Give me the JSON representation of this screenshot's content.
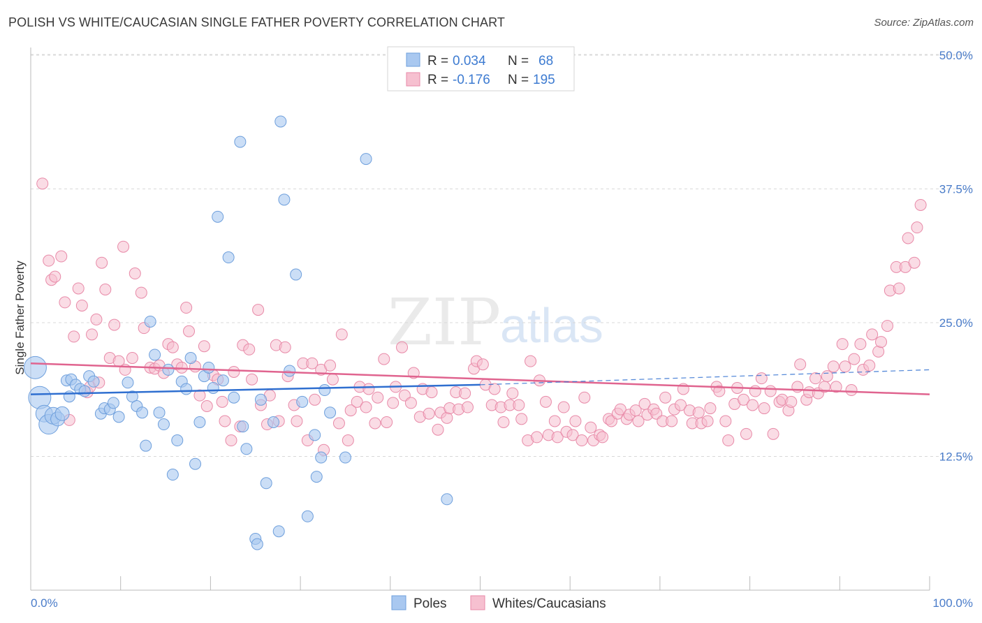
{
  "title": "POLISH VS WHITE/CAUCASIAN SINGLE FATHER POVERTY CORRELATION CHART",
  "source": "Source: ZipAtlas.com",
  "watermark": {
    "zip": "ZIP",
    "atlas": "atlas"
  },
  "colors": {
    "poles_fill": "#a9c8f0",
    "poles_stroke": "#6e9fdc",
    "poles_line": "#2f6fd0",
    "whites_fill": "#f6c0d0",
    "whites_stroke": "#e88aa8",
    "whites_line": "#e0648f",
    "tick_label": "#4a7cc9",
    "grid": "#d8d8d8"
  },
  "legend": {
    "rows": [
      {
        "r_label": "R =",
        "r_value": "0.034",
        "n_label": "N =",
        "n_value": "68"
      },
      {
        "r_label": "R =",
        "r_value": "-0.176",
        "n_label": "N =",
        "n_value": "195"
      }
    ]
  },
  "bottom_legend": [
    "Poles",
    "Whites/Caucasians"
  ],
  "chart_data": {
    "type": "scatter",
    "xlabel": "",
    "ylabel": "Single Father Poverty",
    "xlim": [
      0,
      100
    ],
    "ylim": [
      0,
      51.5
    ],
    "x_tick_labels": [
      "0.0%",
      "100.0%"
    ],
    "y_ticks": [
      12.5,
      25.0,
      37.5,
      50.0
    ],
    "y_tick_labels": [
      "12.5%",
      "25.0%",
      "37.5%",
      "50.0%"
    ],
    "grid": "horizontal dashed",
    "legend_position": "top-center",
    "series": [
      {
        "name": "Poles",
        "r": 0.034,
        "n": 68,
        "trend": {
          "x0": 0,
          "y0": 18.3,
          "x1": 50,
          "y1": 19.2,
          "dashed_to_x": 100,
          "dashed_to_y": 20.6
        },
        "points": [
          [
            0.5,
            20.8,
            16
          ],
          [
            1.0,
            18.0,
            16
          ],
          [
            1.5,
            16.5,
            12
          ],
          [
            2.0,
            15.5,
            14
          ],
          [
            2.5,
            16.3,
            12
          ],
          [
            3.0,
            16.0,
            10
          ],
          [
            3.5,
            16.5,
            10
          ],
          [
            4.0,
            19.6,
            8
          ],
          [
            4.3,
            18.1,
            8
          ],
          [
            4.5,
            19.7,
            8
          ],
          [
            5.0,
            19.2,
            8
          ],
          [
            5.5,
            18.8,
            8
          ],
          [
            6.0,
            18.6,
            8
          ],
          [
            6.5,
            20.0,
            8
          ],
          [
            7.0,
            19.5,
            8
          ],
          [
            7.8,
            16.5,
            8
          ],
          [
            8.2,
            17.0,
            8
          ],
          [
            8.8,
            16.9,
            8
          ],
          [
            9.2,
            17.5,
            8
          ],
          [
            9.8,
            16.2,
            8
          ],
          [
            10.8,
            19.4,
            8
          ],
          [
            11.3,
            18.1,
            8
          ],
          [
            11.8,
            17.2,
            8
          ],
          [
            12.4,
            16.6,
            8
          ],
          [
            12.8,
            13.5,
            8
          ],
          [
            13.3,
            25.1,
            8
          ],
          [
            13.8,
            22.0,
            8
          ],
          [
            14.3,
            16.6,
            8
          ],
          [
            14.8,
            15.5,
            8
          ],
          [
            15.3,
            20.6,
            8
          ],
          [
            15.8,
            10.8,
            8
          ],
          [
            16.3,
            14.0,
            8
          ],
          [
            16.8,
            19.5,
            8
          ],
          [
            17.3,
            18.8,
            8
          ],
          [
            17.8,
            21.7,
            8
          ],
          [
            18.3,
            11.8,
            8
          ],
          [
            18.8,
            15.7,
            8
          ],
          [
            19.3,
            20.0,
            8
          ],
          [
            19.8,
            20.8,
            8
          ],
          [
            20.3,
            18.9,
            8
          ],
          [
            20.8,
            34.9,
            8
          ],
          [
            21.4,
            19.6,
            8
          ],
          [
            22.0,
            31.1,
            8
          ],
          [
            22.6,
            18.0,
            8
          ],
          [
            23.3,
            41.9,
            8
          ],
          [
            23.6,
            15.3,
            8
          ],
          [
            24.0,
            13.2,
            8
          ],
          [
            25.0,
            4.8,
            8
          ],
          [
            25.2,
            4.3,
            8
          ],
          [
            25.6,
            17.8,
            8
          ],
          [
            26.2,
            10.0,
            8
          ],
          [
            27.0,
            15.7,
            8
          ],
          [
            27.6,
            5.5,
            8
          ],
          [
            27.8,
            43.8,
            8
          ],
          [
            28.2,
            36.5,
            8
          ],
          [
            28.8,
            20.5,
            8
          ],
          [
            29.5,
            29.5,
            8
          ],
          [
            30.2,
            17.6,
            8
          ],
          [
            30.8,
            6.9,
            8
          ],
          [
            31.6,
            14.5,
            8
          ],
          [
            31.8,
            10.6,
            8
          ],
          [
            32.3,
            12.4,
            8
          ],
          [
            32.7,
            18.7,
            8
          ],
          [
            33.3,
            16.6,
            8
          ],
          [
            35.0,
            12.4,
            8
          ],
          [
            37.3,
            40.3,
            8
          ],
          [
            46.3,
            8.5,
            8
          ]
        ]
      },
      {
        "name": "Whites/Caucasians",
        "r": -0.176,
        "n": 195,
        "trend": {
          "x0": 0,
          "y0": 21.2,
          "x1": 100,
          "y1": 18.3
        },
        "points": [
          [
            1.3,
            38.0
          ],
          [
            2.0,
            30.8
          ],
          [
            2.3,
            29.0
          ],
          [
            2.7,
            29.3
          ],
          [
            3.4,
            31.2
          ],
          [
            3.8,
            26.9
          ],
          [
            4.3,
            15.9
          ],
          [
            4.8,
            23.7
          ],
          [
            5.3,
            28.2
          ],
          [
            5.7,
            26.6
          ],
          [
            6.3,
            18.5
          ],
          [
            6.6,
            19.0
          ],
          [
            6.8,
            23.9
          ],
          [
            7.3,
            25.3
          ],
          [
            7.6,
            19.4
          ],
          [
            7.9,
            30.6
          ],
          [
            8.3,
            28.1
          ],
          [
            8.8,
            21.7
          ],
          [
            9.3,
            24.8
          ],
          [
            9.8,
            21.4
          ],
          [
            10.3,
            32.1
          ],
          [
            10.5,
            20.6
          ],
          [
            11.3,
            21.7
          ],
          [
            11.6,
            29.6
          ],
          [
            12.3,
            27.8
          ],
          [
            12.6,
            24.5
          ],
          [
            13.3,
            20.8
          ],
          [
            13.8,
            20.7
          ],
          [
            14.3,
            21.0
          ],
          [
            14.8,
            20.3
          ],
          [
            15.3,
            23.0
          ],
          [
            15.8,
            22.7
          ],
          [
            16.3,
            21.1
          ],
          [
            16.8,
            20.8
          ],
          [
            17.3,
            26.4
          ],
          [
            17.6,
            24.2
          ],
          [
            18.3,
            20.9
          ],
          [
            18.8,
            18.2
          ],
          [
            19.3,
            22.8
          ],
          [
            19.6,
            17.2
          ],
          [
            20.3,
            20.1
          ],
          [
            20.8,
            19.7
          ],
          [
            21.3,
            17.6
          ],
          [
            21.6,
            15.8
          ],
          [
            22.3,
            14.0
          ],
          [
            22.6,
            20.4
          ],
          [
            23.3,
            15.3
          ],
          [
            23.6,
            22.9
          ],
          [
            24.3,
            22.5
          ],
          [
            24.6,
            19.7
          ],
          [
            25.3,
            26.2
          ],
          [
            25.6,
            17.3
          ],
          [
            26.3,
            15.5
          ],
          [
            26.6,
            18.2
          ],
          [
            27.3,
            22.9
          ],
          [
            27.6,
            15.8
          ],
          [
            28.3,
            22.7
          ],
          [
            28.6,
            20.0
          ],
          [
            29.3,
            17.3
          ],
          [
            29.6,
            15.8
          ],
          [
            30.3,
            21.2
          ],
          [
            30.8,
            14.0
          ],
          [
            31.3,
            21.2
          ],
          [
            31.6,
            17.8
          ],
          [
            32.3,
            20.6
          ],
          [
            32.6,
            13.1
          ],
          [
            33.3,
            21.0
          ],
          [
            33.6,
            19.7
          ],
          [
            34.3,
            15.6
          ],
          [
            34.6,
            23.9
          ],
          [
            35.3,
            14.0
          ],
          [
            35.6,
            16.8
          ],
          [
            36.3,
            17.6
          ],
          [
            36.6,
            19.0
          ],
          [
            37.3,
            17.1
          ],
          [
            37.6,
            18.8
          ],
          [
            38.3,
            15.6
          ],
          [
            38.6,
            18.0
          ],
          [
            39.3,
            21.6
          ],
          [
            39.6,
            15.7
          ],
          [
            40.3,
            17.5
          ],
          [
            40.6,
            19.0
          ],
          [
            41.3,
            22.7
          ],
          [
            41.6,
            18.2
          ],
          [
            42.3,
            17.5
          ],
          [
            42.6,
            20.3
          ],
          [
            43.3,
            16.2
          ],
          [
            43.6,
            18.8
          ],
          [
            44.3,
            16.5
          ],
          [
            44.6,
            18.5
          ],
          [
            45.3,
            15.0
          ],
          [
            45.6,
            16.6
          ],
          [
            46.3,
            16.1
          ],
          [
            46.6,
            17.0
          ],
          [
            47.3,
            18.5
          ],
          [
            47.6,
            16.9
          ],
          [
            48.3,
            18.4
          ],
          [
            48.6,
            17.1
          ],
          [
            49.3,
            20.7
          ],
          [
            49.6,
            21.4
          ],
          [
            50.3,
            21.1
          ],
          [
            50.6,
            19.2
          ],
          [
            51.3,
            17.3
          ],
          [
            51.6,
            18.8
          ],
          [
            52.3,
            17.1
          ],
          [
            52.6,
            15.7
          ],
          [
            53.3,
            17.3
          ],
          [
            53.6,
            18.4
          ],
          [
            54.3,
            17.3
          ],
          [
            54.6,
            16.0
          ],
          [
            55.3,
            14.0
          ],
          [
            55.6,
            21.4
          ],
          [
            56.3,
            14.3
          ],
          [
            56.6,
            19.6
          ],
          [
            57.3,
            17.6
          ],
          [
            57.6,
            14.5
          ],
          [
            58.3,
            15.8
          ],
          [
            58.6,
            14.3
          ],
          [
            59.3,
            17.1
          ],
          [
            59.6,
            14.8
          ],
          [
            60.3,
            14.5
          ],
          [
            60.6,
            15.8
          ],
          [
            61.3,
            14.0
          ],
          [
            61.6,
            18.0
          ],
          [
            62.3,
            15.2
          ],
          [
            62.6,
            14.0
          ],
          [
            63.3,
            14.5
          ],
          [
            63.6,
            14.3
          ],
          [
            64.3,
            16.0
          ],
          [
            64.6,
            15.8
          ],
          [
            65.3,
            16.5
          ],
          [
            65.6,
            16.9
          ],
          [
            66.3,
            16.0
          ],
          [
            66.6,
            16.4
          ],
          [
            67.3,
            16.8
          ],
          [
            67.6,
            15.8
          ],
          [
            68.3,
            17.4
          ],
          [
            68.6,
            16.4
          ],
          [
            69.3,
            16.9
          ],
          [
            69.6,
            16.5
          ],
          [
            70.3,
            15.8
          ],
          [
            70.6,
            18.0
          ],
          [
            71.3,
            15.8
          ],
          [
            71.6,
            16.9
          ],
          [
            72.3,
            17.3
          ],
          [
            72.6,
            18.8
          ],
          [
            73.3,
            16.8
          ],
          [
            73.6,
            15.6
          ],
          [
            74.3,
            16.6
          ],
          [
            74.6,
            15.6
          ],
          [
            75.3,
            15.8
          ],
          [
            75.6,
            17.0
          ],
          [
            76.3,
            19.0
          ],
          [
            76.6,
            18.6
          ],
          [
            77.3,
            15.8
          ],
          [
            77.6,
            14.0
          ],
          [
            78.3,
            17.4
          ],
          [
            78.6,
            18.9
          ],
          [
            79.3,
            17.8
          ],
          [
            79.6,
            14.6
          ],
          [
            80.3,
            17.3
          ],
          [
            80.6,
            18.6
          ],
          [
            81.3,
            19.8
          ],
          [
            81.6,
            17.0
          ],
          [
            82.3,
            18.6
          ],
          [
            82.6,
            14.6
          ],
          [
            83.3,
            17.6
          ],
          [
            83.6,
            17.8
          ],
          [
            84.3,
            16.8
          ],
          [
            84.6,
            17.6
          ],
          [
            85.3,
            19.0
          ],
          [
            85.6,
            21.1
          ],
          [
            86.3,
            17.8
          ],
          [
            86.6,
            18.5
          ],
          [
            87.3,
            19.8
          ],
          [
            87.6,
            18.4
          ],
          [
            88.3,
            19.0
          ],
          [
            88.6,
            20.0
          ],
          [
            89.3,
            20.9
          ],
          [
            89.6,
            19.0
          ],
          [
            90.3,
            23.0
          ],
          [
            90.6,
            20.9
          ],
          [
            91.3,
            18.7
          ],
          [
            91.6,
            21.6
          ],
          [
            92.3,
            23.0
          ],
          [
            92.6,
            20.6
          ],
          [
            93.3,
            21.0
          ],
          [
            93.6,
            23.9
          ],
          [
            94.3,
            22.3
          ],
          [
            94.6,
            23.2
          ],
          [
            95.3,
            24.7
          ],
          [
            95.6,
            28.0
          ],
          [
            96.3,
            30.2
          ],
          [
            96.6,
            28.2
          ],
          [
            97.3,
            30.2
          ],
          [
            97.6,
            32.9
          ],
          [
            98.3,
            30.6
          ],
          [
            98.6,
            33.9
          ],
          [
            99.0,
            36.0
          ]
        ]
      }
    ]
  }
}
